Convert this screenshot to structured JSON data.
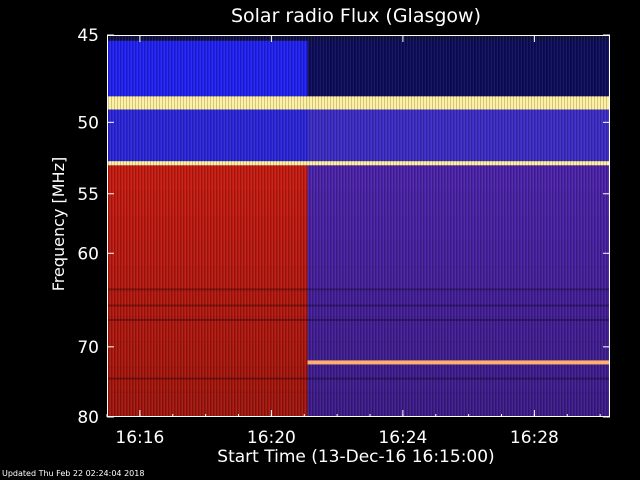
{
  "chart_data": {
    "type": "heatmap",
    "title": "Solar radio Flux (Glasgow)",
    "xlabel": "Start Time (13-Dec-16 16:15:00)",
    "ylabel": "Frequency [MHz]",
    "x_ticks": [
      "16:16",
      "16:20",
      "16:24",
      "16:28"
    ],
    "x_tick_minutes": [
      1,
      5,
      9,
      13
    ],
    "xlim_minutes": [
      0,
      15.3
    ],
    "y_ticks": [
      45,
      50,
      55,
      60,
      70,
      80
    ],
    "y_scale": "reciprocal",
    "ylim": [
      45,
      80
    ],
    "event_time_minutes": 6.1,
    "colormap": {
      "low": "#0a0a40",
      "mid": "#3c30c8",
      "high": "#ff2000",
      "peak": "#fff0a0"
    },
    "bands_mhz": [
      {
        "f0": 45.3,
        "f1": 48.4,
        "before": "#2020f0",
        "after": "#0c0c5a"
      },
      {
        "f0": 48.4,
        "f1": 49.2,
        "before": "#fff0a0",
        "after": "#fff0a0"
      },
      {
        "f0": 49.2,
        "f1": 52.6,
        "before": "#2a24d8",
        "after": "#3a2cc4"
      },
      {
        "f0": 52.6,
        "f1": 52.9,
        "before": "#fff0a0",
        "after": "#fff0a0"
      },
      {
        "f0": 52.9,
        "f1": 80.0,
        "before": "#c41a10",
        "after": "#4a22a8"
      }
    ],
    "lines_mhz": [
      72.0
    ]
  },
  "footer": {
    "updated": "Updated Thu Feb 22 02:24:04 2018"
  }
}
